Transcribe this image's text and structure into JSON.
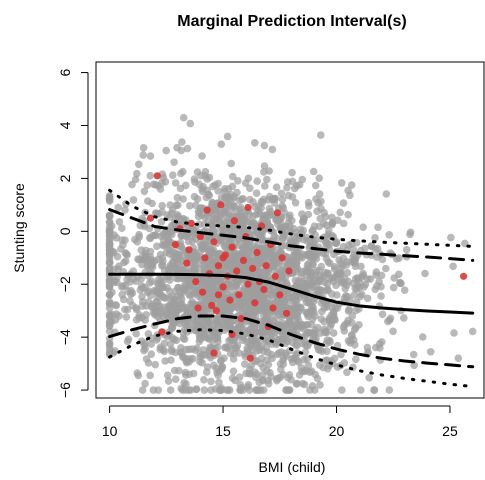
{
  "chart_data": {
    "type": "scatter",
    "title": "Marginal Prediction Interval(s)",
    "xlabel": "BMI (child)",
    "ylabel": "Stunting score",
    "xlim": [
      9.4,
      26.5
    ],
    "ylim": [
      -6.3,
      6.4
    ],
    "x_ticks": [
      "10",
      "15",
      "20",
      "25"
    ],
    "y_ticks": [
      "6",
      "4",
      "2",
      "0",
      "−2",
      "−4",
      "−6"
    ],
    "grid": false,
    "legend": "none",
    "point_colors": {
      "background": "#9e9e9e",
      "highlighted": "#d93636"
    },
    "background_points": {
      "count": 2600,
      "x_center": 15.8,
      "x_spread": 2.6,
      "x_range": [
        10,
        26
      ],
      "y_center": -1.8,
      "y_spread": 1.9,
      "y_range": [
        -6,
        5.6
      ]
    },
    "highlighted_points": [
      [
        11.8,
        0.5
      ],
      [
        12.1,
        2.1
      ],
      [
        12.3,
        -3.8
      ],
      [
        12.9,
        -0.5
      ],
      [
        13.1,
        0.1
      ],
      [
        13.4,
        -1.2
      ],
      [
        13.5,
        -0.7
      ],
      [
        13.6,
        0.3
      ],
      [
        13.8,
        -1.9
      ],
      [
        14.0,
        -0.2
      ],
      [
        14.1,
        -2.3
      ],
      [
        14.2,
        -1.0
      ],
      [
        14.3,
        0.8
      ],
      [
        14.4,
        -1.6
      ],
      [
        14.5,
        -2.8
      ],
      [
        14.6,
        -0.4
      ],
      [
        14.7,
        -3.0
      ],
      [
        14.8,
        -1.3
      ],
      [
        14.9,
        1.0
      ],
      [
        15.0,
        -2.1
      ],
      [
        15.1,
        -0.9
      ],
      [
        15.2,
        -1.7
      ],
      [
        15.3,
        -2.6
      ],
      [
        15.4,
        -0.6
      ],
      [
        15.5,
        0.4
      ],
      [
        15.6,
        -1.5
      ],
      [
        15.7,
        -2.4
      ],
      [
        15.8,
        -3.3
      ],
      [
        15.9,
        -1.1
      ],
      [
        16.0,
        -0.2
      ],
      [
        16.1,
        -2.0
      ],
      [
        16.2,
        -4.8
      ],
      [
        16.3,
        -1.4
      ],
      [
        16.4,
        -2.7
      ],
      [
        16.5,
        -0.8
      ],
      [
        16.6,
        -1.9
      ],
      [
        16.7,
        0.2
      ],
      [
        16.8,
        -2.2
      ],
      [
        16.9,
        -1.3
      ],
      [
        17.0,
        -3.6
      ],
      [
        17.1,
        -0.5
      ],
      [
        17.2,
        -2.9
      ],
      [
        17.3,
        -1.7
      ],
      [
        17.4,
        0.7
      ],
      [
        17.5,
        -2.4
      ],
      [
        17.6,
        -1.0
      ],
      [
        17.8,
        -3.1
      ],
      [
        14.6,
        -4.6
      ],
      [
        15.4,
        -3.9
      ],
      [
        13.9,
        -2.9
      ],
      [
        17.9,
        -1.5
      ],
      [
        16.1,
        0.9
      ],
      [
        15.0,
        -1.0
      ],
      [
        14.8,
        -2.4
      ],
      [
        25.6,
        -1.7
      ]
    ],
    "series": [
      {
        "style": "solid",
        "x": [
          10,
          11,
          12,
          13,
          14,
          15,
          16,
          17,
          18,
          19,
          20,
          21,
          22,
          23,
          24,
          25,
          26
        ],
        "y": [
          -1.62,
          -1.62,
          -1.62,
          -1.63,
          -1.64,
          -1.67,
          -1.75,
          -1.92,
          -2.18,
          -2.45,
          -2.68,
          -2.82,
          -2.9,
          -2.96,
          -3.01,
          -3.05,
          -3.09
        ]
      },
      {
        "style": "dashed",
        "x": [
          10,
          11,
          12,
          13,
          14,
          15,
          16,
          17,
          18,
          19,
          20,
          21,
          22,
          23,
          24,
          25,
          26
        ],
        "y": [
          0.82,
          0.5,
          0.18,
          0.05,
          -0.05,
          -0.15,
          -0.25,
          -0.4,
          -0.55,
          -0.65,
          -0.75,
          -0.82,
          -0.87,
          -0.92,
          -0.97,
          -1.03,
          -1.1
        ]
      },
      {
        "style": "dashed",
        "x": [
          10,
          11,
          12,
          13,
          14,
          15,
          16,
          17,
          18,
          19,
          20,
          21,
          22,
          23,
          24,
          25,
          26
        ],
        "y": [
          -3.98,
          -3.72,
          -3.5,
          -3.3,
          -3.2,
          -3.2,
          -3.3,
          -3.55,
          -3.9,
          -4.2,
          -4.45,
          -4.65,
          -4.8,
          -4.9,
          -4.98,
          -5.05,
          -5.12
        ]
      },
      {
        "style": "dotted",
        "x": [
          10,
          11,
          12,
          13,
          14,
          15,
          16,
          17,
          18,
          19,
          20,
          21,
          22,
          23,
          24,
          25,
          26
        ],
        "y": [
          1.55,
          0.95,
          0.55,
          0.35,
          0.25,
          0.2,
          0.15,
          0.05,
          -0.1,
          -0.22,
          -0.3,
          -0.36,
          -0.41,
          -0.45,
          -0.49,
          -0.53,
          -0.57
        ]
      },
      {
        "style": "dotted",
        "x": [
          10,
          11,
          12,
          13,
          14,
          15,
          16,
          17,
          18,
          19,
          20,
          21,
          22,
          23,
          24,
          25,
          26
        ],
        "y": [
          -4.75,
          -4.3,
          -3.95,
          -3.78,
          -3.72,
          -3.75,
          -3.88,
          -4.1,
          -4.45,
          -4.78,
          -5.05,
          -5.27,
          -5.43,
          -5.56,
          -5.67,
          -5.78,
          -5.87
        ]
      }
    ]
  }
}
